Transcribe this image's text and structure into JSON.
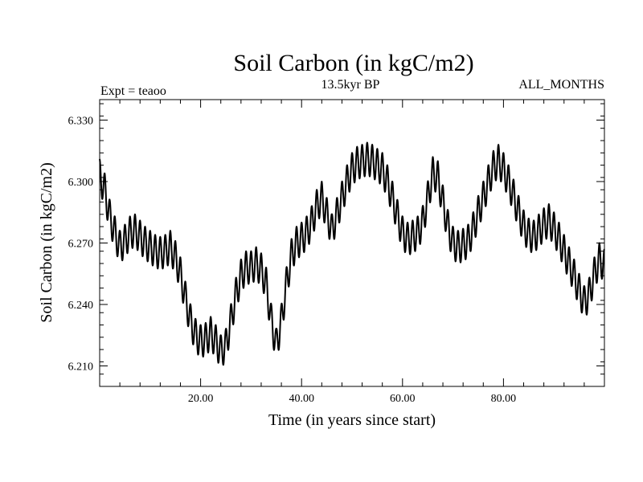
{
  "header": {
    "title": "Soil Carbon (in kgC/m2)",
    "experiment": "Expt = teaoo",
    "period": "13.5kyr BP",
    "months": "ALL_MONTHS"
  },
  "chart_data": {
    "type": "line",
    "xlabel": "Time (in years since start)",
    "ylabel": "Soil Carbon (in kgC/m2)",
    "xlim": [
      0,
      100
    ],
    "ylim": [
      6.2,
      6.34
    ],
    "x_ticks": [
      {
        "value": 20,
        "label": "20.00"
      },
      {
        "value": 40,
        "label": "40.00"
      },
      {
        "value": 60,
        "label": "60.00"
      },
      {
        "value": 80,
        "label": "80.00"
      }
    ],
    "y_ticks": [
      {
        "value": 6.21,
        "label": "6.210"
      },
      {
        "value": 6.24,
        "label": "6.240"
      },
      {
        "value": 6.27,
        "label": "6.270"
      },
      {
        "value": 6.3,
        "label": "6.300"
      },
      {
        "value": 6.33,
        "label": "6.330"
      }
    ],
    "seasonal_amplitude": 0.008,
    "series": [
      {
        "color": "#000000",
        "x": [
          0,
          1,
          2,
          3,
          4,
          5,
          6,
          7,
          8,
          9,
          10,
          11,
          12,
          13,
          14,
          15,
          16,
          17,
          18,
          19,
          20,
          21,
          22,
          23,
          24,
          25,
          26,
          27,
          28,
          29,
          30,
          31,
          32,
          33,
          34,
          35,
          36,
          37,
          38,
          39,
          40,
          41,
          42,
          43,
          44,
          45,
          46,
          47,
          48,
          49,
          50,
          51,
          52,
          53,
          54,
          55,
          56,
          57,
          58,
          59,
          60,
          61,
          62,
          63,
          64,
          65,
          66,
          67,
          68,
          69,
          70,
          71,
          72,
          73,
          74,
          75,
          76,
          77,
          78,
          79,
          80,
          81,
          82,
          83,
          84,
          85,
          86,
          87,
          88,
          89,
          90,
          91,
          92,
          93,
          94,
          95,
          96,
          97,
          98,
          99,
          100
        ],
        "y": [
          6.303,
          6.296,
          6.283,
          6.275,
          6.268,
          6.271,
          6.275,
          6.276,
          6.273,
          6.27,
          6.268,
          6.266,
          6.265,
          6.266,
          6.268,
          6.263,
          6.255,
          6.243,
          6.232,
          6.225,
          6.222,
          6.223,
          6.226,
          6.222,
          6.217,
          6.22,
          6.232,
          6.245,
          6.254,
          6.258,
          6.258,
          6.26,
          6.257,
          6.25,
          6.232,
          6.22,
          6.232,
          6.25,
          6.264,
          6.27,
          6.272,
          6.275,
          6.28,
          6.288,
          6.292,
          6.284,
          6.276,
          6.284,
          6.292,
          6.3,
          6.306,
          6.309,
          6.31,
          6.311,
          6.31,
          6.308,
          6.306,
          6.3,
          6.292,
          6.283,
          6.275,
          6.272,
          6.273,
          6.275,
          6.28,
          6.292,
          6.304,
          6.302,
          6.29,
          6.278,
          6.27,
          6.268,
          6.269,
          6.271,
          6.277,
          6.285,
          6.292,
          6.3,
          6.307,
          6.31,
          6.306,
          6.3,
          6.293,
          6.285,
          6.278,
          6.274,
          6.273,
          6.276,
          6.279,
          6.281,
          6.277,
          6.272,
          6.266,
          6.26,
          6.254,
          6.247,
          6.241,
          6.245,
          6.255,
          6.262,
          6.259
        ]
      }
    ]
  }
}
